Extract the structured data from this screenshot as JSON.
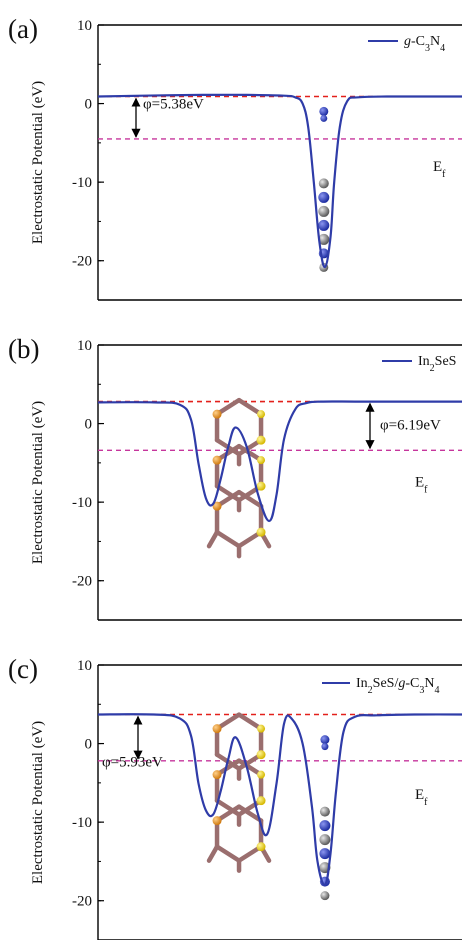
{
  "chart_data": [
    {
      "type": "line",
      "panel_label": "(a)",
      "ylabel": "Electrostatic Potential (eV)",
      "yticks": [
        "10",
        "0",
        "-10",
        "-20"
      ],
      "ylim": [
        -25,
        10
      ],
      "xlim": [
        0,
        1
      ],
      "series": [
        {
          "name": "g-C3N4",
          "legend_parts": [
            {
              "t": "g",
              "style": "italic"
            },
            {
              "t": "-C"
            },
            {
              "t": "3",
              "sub": true
            },
            {
              "t": "N"
            },
            {
              "t": "4",
              "sub": true
            }
          ],
          "color": "#2f3ca8",
          "x": [
            0.0,
            0.12,
            0.28,
            0.4,
            0.5,
            0.53,
            0.55,
            0.565,
            0.58,
            0.595,
            0.61,
            0.625,
            0.635,
            0.65,
            0.67,
            0.7,
            0.8,
            0.9,
            1.0
          ],
          "y": [
            0.9,
            1.0,
            1.1,
            1.1,
            1.0,
            0.8,
            0.0,
            -3.0,
            -10.0,
            -17.5,
            -20.8,
            -17.0,
            -10.0,
            -3.0,
            0.3,
            0.8,
            0.9,
            0.9,
            0.9
          ]
        }
      ],
      "vacuum_level": 0.9,
      "fermi_level": -4.5,
      "work_function_label": "φ=5.38eV",
      "fermi_label": "E",
      "fermi_sub": "f"
    },
    {
      "type": "line",
      "panel_label": "(b)",
      "ylabel": "Electrostatic Potential (eV)",
      "yticks": [
        "10",
        "0",
        "-10",
        "-20"
      ],
      "ylim": [
        -25,
        10
      ],
      "xlim": [
        0,
        1
      ],
      "series": [
        {
          "name": "In2SeS",
          "legend_parts": [
            {
              "t": "In"
            },
            {
              "t": "2",
              "sub": true
            },
            {
              "t": "SeS"
            }
          ],
          "color": "#2f3ca8",
          "x": [
            0.0,
            0.15,
            0.22,
            0.25,
            0.27,
            0.29,
            0.31,
            0.33,
            0.35,
            0.37,
            0.4,
            0.43,
            0.46,
            0.48,
            0.5,
            0.53,
            0.56,
            0.6,
            0.7,
            0.85,
            1.0
          ],
          "y": [
            2.7,
            2.7,
            2.4,
            0.5,
            -5.0,
            -9.5,
            -10.2,
            -7.0,
            -3.0,
            -0.5,
            -3.0,
            -9.0,
            -12.4,
            -9.0,
            -2.0,
            1.8,
            2.6,
            2.8,
            2.8,
            2.8,
            2.8
          ]
        }
      ],
      "vacuum_level": 2.8,
      "fermi_level": -3.4,
      "work_function_label": "φ=6.19eV",
      "fermi_label": "E",
      "fermi_sub": "f"
    },
    {
      "type": "line",
      "panel_label": "(c)",
      "ylabel": "Electrostatic Potential (eV)",
      "yticks": [
        "10",
        "0",
        "-10",
        "-20"
      ],
      "ylim": [
        -25,
        10
      ],
      "xlim": [
        0,
        1
      ],
      "series": [
        {
          "name": "In2SeS/g-C3N4",
          "legend_parts": [
            {
              "t": "In"
            },
            {
              "t": "2",
              "sub": true
            },
            {
              "t": "SeS/"
            },
            {
              "t": "g",
              "style": "italic"
            },
            {
              "t": "-C"
            },
            {
              "t": "3",
              "sub": true
            },
            {
              "t": "N"
            },
            {
              "t": "4",
              "sub": true
            }
          ],
          "color": "#2f3ca8",
          "x": [
            0.0,
            0.15,
            0.22,
            0.25,
            0.27,
            0.29,
            0.31,
            0.33,
            0.35,
            0.37,
            0.4,
            0.43,
            0.455,
            0.48,
            0.5,
            0.52,
            0.55,
            0.575,
            0.59,
            0.61,
            0.625,
            0.64,
            0.66,
            0.69,
            0.75,
            0.85,
            1.0
          ],
          "y": [
            3.7,
            3.7,
            3.2,
            1.0,
            -5.0,
            -8.5,
            -9.0,
            -6.0,
            -2.0,
            0.8,
            -3.0,
            -9.0,
            -11.5,
            -5.0,
            2.5,
            3.2,
            0.0,
            -8.0,
            -15.0,
            -18.0,
            -14.0,
            -6.0,
            1.5,
            3.4,
            3.6,
            3.7,
            3.7
          ]
        }
      ],
      "vacuum_level": 3.7,
      "fermi_level": -2.2,
      "work_function_label": "φ=5.93eV",
      "fermi_label": "E",
      "fermi_sub": "f"
    }
  ]
}
